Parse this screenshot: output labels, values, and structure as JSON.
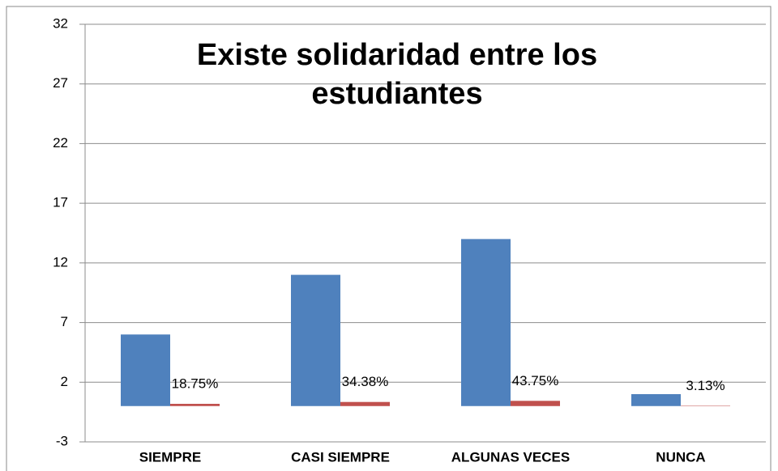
{
  "chart_data": {
    "type": "bar",
    "title": "Existe solidaridad entre los estudiantes",
    "categories": [
      "SIEMPRE",
      "CASI SIEMPRE",
      "ALGUNAS VECES",
      "NUNCA"
    ],
    "series": [
      {
        "color": "#4f81bd",
        "values": [
          6,
          11,
          14,
          1
        ]
      },
      {
        "color": "#c0504d",
        "values": [
          0.1875,
          0.3438,
          0.4375,
          0.0313
        ],
        "value_labels": [
          "18.75%",
          "34.38%",
          "43.75%",
          "3.13%"
        ]
      }
    ],
    "ylim": [
      -3,
      32
    ],
    "yticks": [
      -3,
      2,
      7,
      12,
      17,
      22,
      27,
      32
    ],
    "grid": true
  }
}
